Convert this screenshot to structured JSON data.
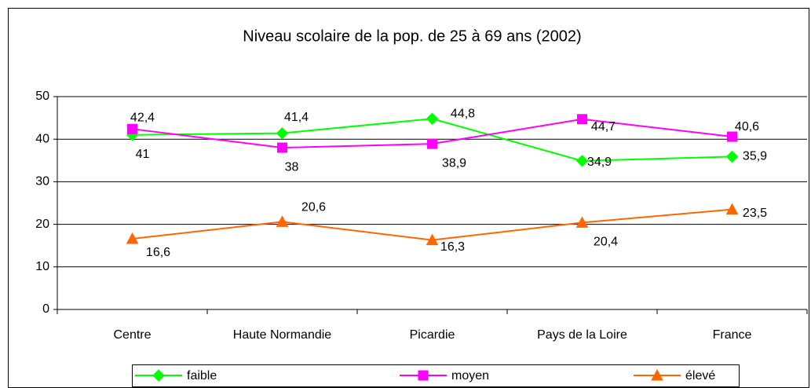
{
  "chart_data": {
    "type": "line",
    "title": "Niveau scolaire de la pop. de 25 à 69 ans (2002)",
    "categories": [
      "Centre",
      "Haute Normandie",
      "Picardie",
      "Pays de la Loire",
      "France"
    ],
    "series": [
      {
        "name": "faible",
        "color": "#00ff00",
        "marker": "diamond",
        "values": [
          41,
          41.4,
          44.8,
          34.9,
          35.9
        ],
        "value_labels": [
          "41",
          "41,4",
          "44,8",
          "34,9",
          "35,9"
        ]
      },
      {
        "name": "moyen",
        "color": "#ff00ff",
        "marker": "square",
        "values": [
          42.4,
          38,
          38.9,
          44.7,
          40.6
        ],
        "value_labels": [
          "42,4",
          "38",
          "38,9",
          "44,7",
          "40,6"
        ]
      },
      {
        "name": "élevé",
        "color": "#ff6600",
        "marker": "triangle",
        "values": [
          16.6,
          20.6,
          16.3,
          20.4,
          23.5
        ],
        "value_labels": [
          "16,6",
          "20,6",
          "16,3",
          "20,4",
          "23,5"
        ]
      }
    ],
    "ylim": [
      0,
      50
    ],
    "yticks": [
      0,
      10,
      20,
      30,
      40,
      50
    ],
    "grid": true,
    "legend": "bottom"
  }
}
